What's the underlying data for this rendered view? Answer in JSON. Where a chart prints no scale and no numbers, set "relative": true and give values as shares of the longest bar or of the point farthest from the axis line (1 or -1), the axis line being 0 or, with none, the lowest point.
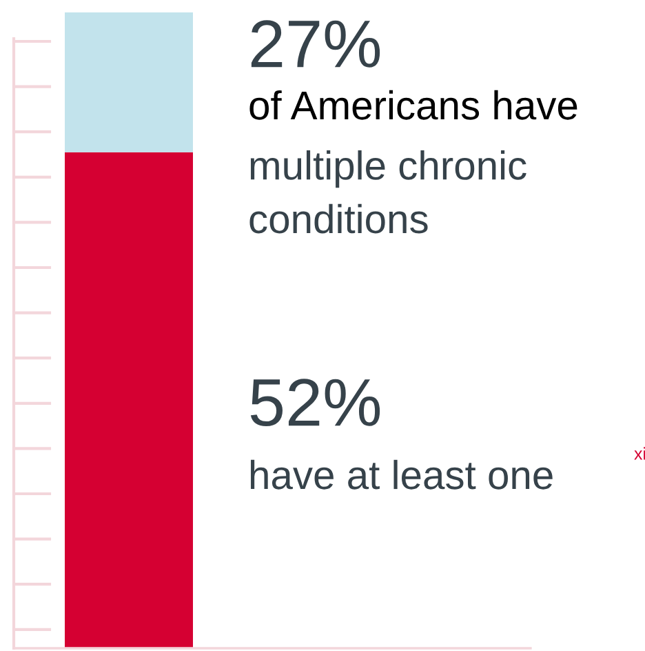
{
  "chart_data": {
    "type": "bar",
    "relative": true,
    "stacked": true,
    "categories": [
      null
    ],
    "series": [
      {
        "color": "#d50032",
        "values": [
          0.78
        ]
      },
      {
        "color": "#c2e3ec",
        "values": [
          0.22
        ]
      }
    ],
    "annotations": [
      "27%",
      "of Americans have",
      "multiple chronic\nconditions",
      "52%",
      "have at least one",
      "xi"
    ],
    "grid": false,
    "legend": false
  }
}
